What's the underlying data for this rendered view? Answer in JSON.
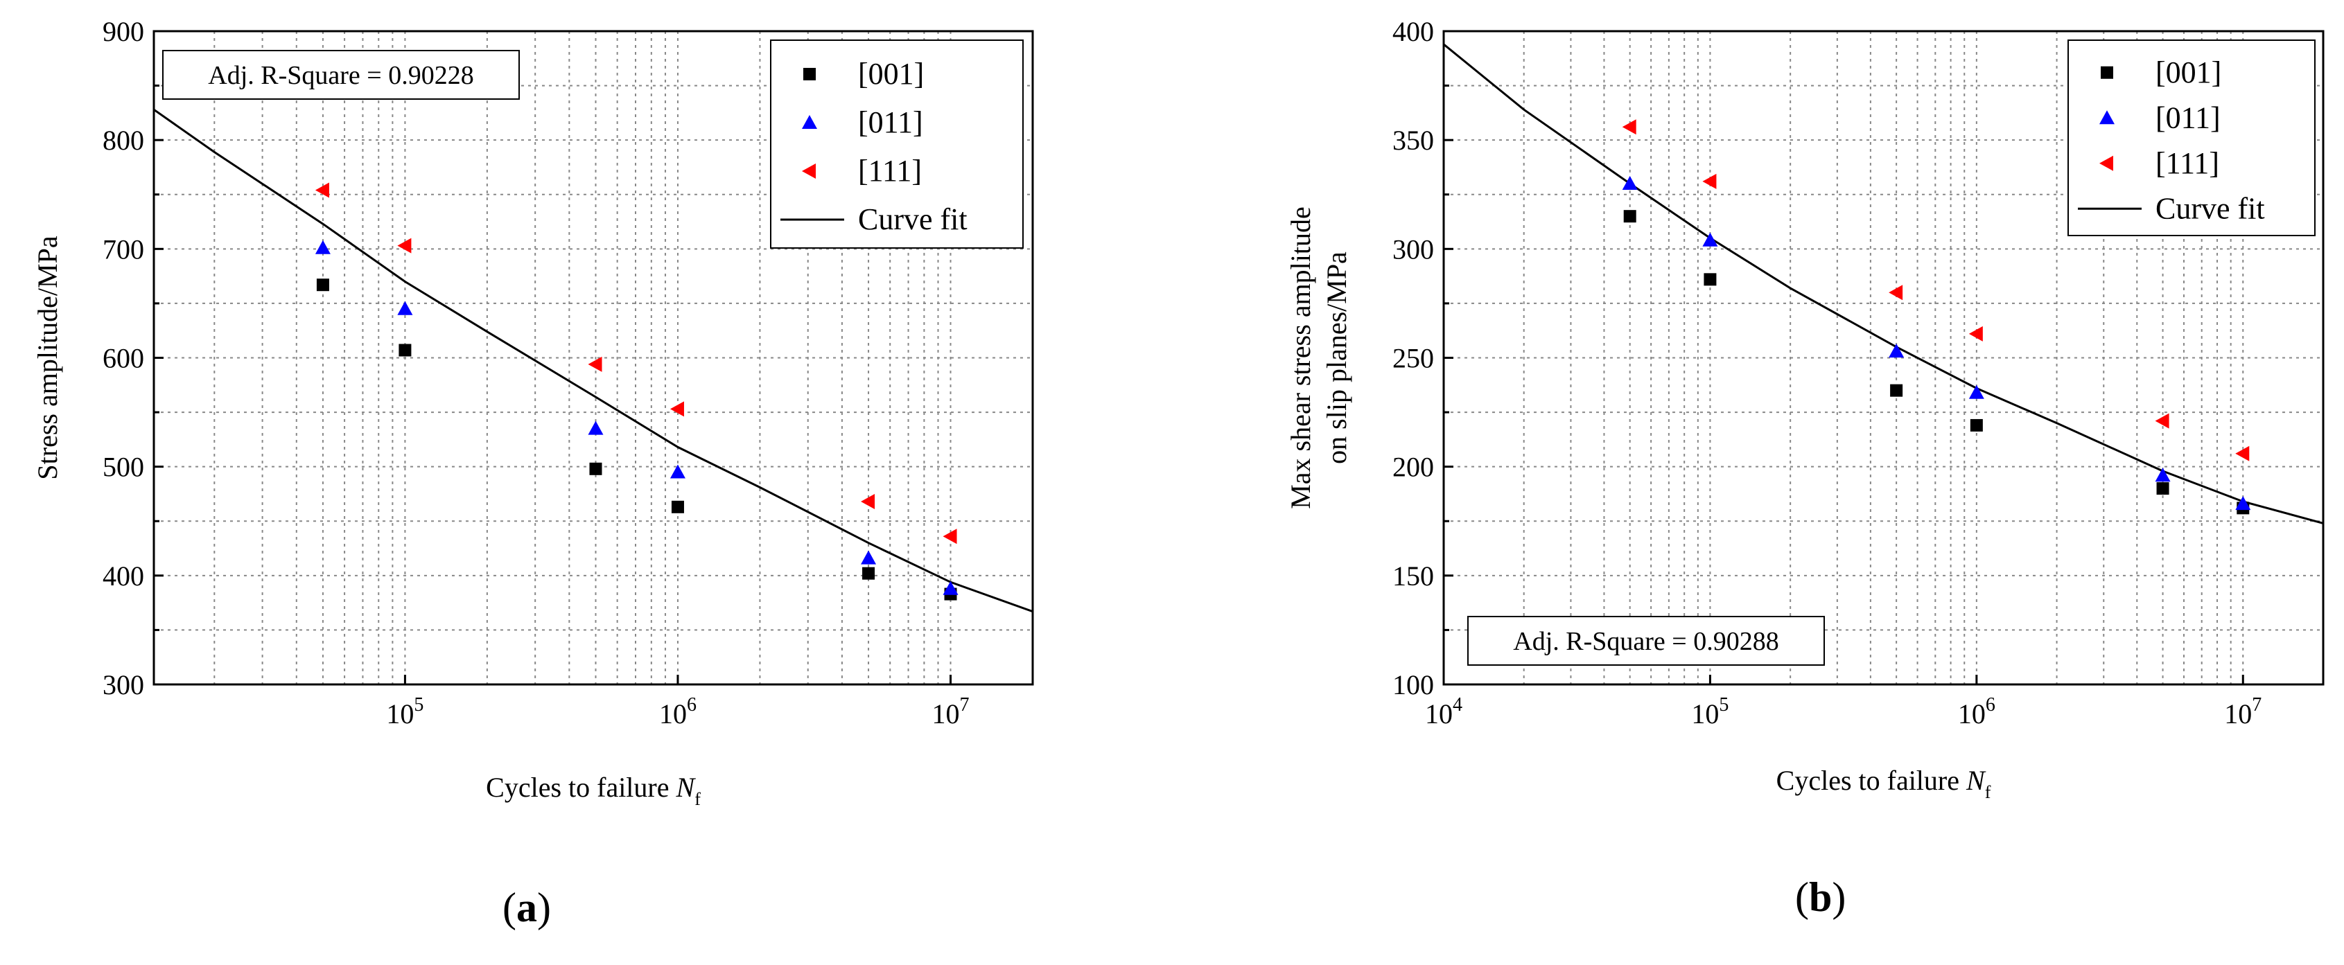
{
  "chart_data": [
    {
      "type": "scatter",
      "panel_label": "a",
      "title": "",
      "xlabel": "Cycles to failure",
      "xlabel_symbol": "N",
      "xlabel_subscript": "f",
      "ylabel": "Stress amplitude/MPa",
      "xscale": "log",
      "xlim": [
        12000,
        20000000
      ],
      "ylim": [
        300,
        900
      ],
      "yticks": [
        300,
        400,
        500,
        600,
        700,
        800,
        900
      ],
      "xticks": [
        {
          "mant": "10",
          "exp": "5",
          "value": 100000
        },
        {
          "mant": "10",
          "exp": "6",
          "value": 1000000
        },
        {
          "mant": "10",
          "exp": "7",
          "value": 10000000
        }
      ],
      "grid": true,
      "annotation": "Adj. R-Square = 0.90228",
      "annotation_position": "top-left",
      "legend_position": "top-right",
      "series": [
        {
          "name": "[001]",
          "marker": "square",
          "color": "#000000",
          "x": [
            50000,
            100000,
            500000,
            1000000,
            5000000,
            10000000
          ],
          "y": [
            667,
            607,
            498,
            463,
            402,
            383
          ]
        },
        {
          "name": "[011]",
          "marker": "triangle-up",
          "color": "#0000ff",
          "x": [
            50000,
            100000,
            500000,
            1000000,
            5000000,
            10000000
          ],
          "y": [
            701,
            645,
            535,
            495,
            416,
            388
          ]
        },
        {
          "name": "[111]",
          "marker": "triangle-left",
          "color": "#ff0000",
          "x": [
            50000,
            100000,
            500000,
            1000000,
            5000000,
            10000000
          ],
          "y": [
            754,
            703,
            594,
            553,
            468,
            436
          ]
        }
      ],
      "fit": {
        "name": "Curve fit",
        "color": "#000000",
        "x": [
          12000,
          20000,
          50000,
          100000,
          200000,
          500000,
          1000000,
          2000000,
          5000000,
          10000000,
          20000000
        ],
        "y": [
          828,
          789,
          723,
          670,
          624,
          564,
          518,
          481,
          430,
          394,
          367
        ]
      }
    },
    {
      "type": "scatter",
      "panel_label": "b",
      "title": "",
      "xlabel": "Cycles to failure",
      "xlabel_symbol": "N",
      "xlabel_subscript": "f",
      "ylabel_lines": [
        "Max shear stress amplitude",
        "on slip planes/MPa"
      ],
      "xscale": "log",
      "xlim": [
        10000,
        20000000
      ],
      "ylim": [
        100,
        400
      ],
      "yticks": [
        100,
        150,
        200,
        250,
        300,
        350,
        400
      ],
      "xticks": [
        {
          "mant": "10",
          "exp": "4",
          "value": 10000
        },
        {
          "mant": "10",
          "exp": "5",
          "value": 100000
        },
        {
          "mant": "10",
          "exp": "6",
          "value": 1000000
        },
        {
          "mant": "10",
          "exp": "7",
          "value": 10000000
        }
      ],
      "grid": true,
      "annotation": "Adj. R-Square = 0.90288",
      "annotation_position": "bottom-left",
      "legend_position": "top-right",
      "series": [
        {
          "name": "[001]",
          "marker": "square",
          "color": "#000000",
          "x": [
            50000,
            100000,
            500000,
            1000000,
            5000000,
            10000000
          ],
          "y": [
            315,
            286,
            235,
            219,
            190,
            181
          ]
        },
        {
          "name": "[011]",
          "marker": "triangle-up",
          "color": "#0000ff",
          "x": [
            50000,
            100000,
            500000,
            1000000,
            5000000,
            10000000
          ],
          "y": [
            330,
            304,
            253,
            234,
            196,
            183
          ]
        },
        {
          "name": "[111]",
          "marker": "triangle-left",
          "color": "#ff0000",
          "x": [
            50000,
            100000,
            500000,
            1000000,
            5000000,
            10000000
          ],
          "y": [
            356,
            331,
            280,
            261,
            221,
            206
          ]
        }
      ],
      "fit": {
        "name": "Curve fit",
        "color": "#000000",
        "x": [
          10000,
          20000,
          50000,
          100000,
          200000,
          500000,
          1000000,
          2000000,
          5000000,
          10000000,
          20000000
        ],
        "y": [
          394,
          364,
          330,
          305,
          282,
          255,
          236,
          220,
          198,
          184,
          174
        ]
      }
    }
  ],
  "labels": {
    "a": "a",
    "b": "b",
    "open": "(",
    "close": ")"
  }
}
